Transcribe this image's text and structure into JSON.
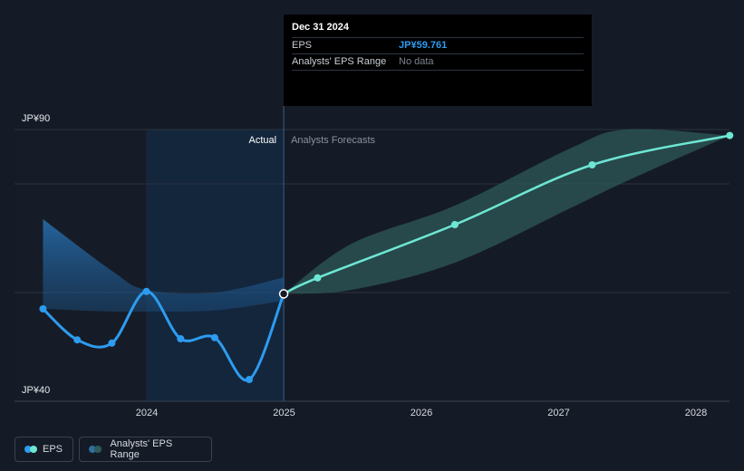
{
  "tooltip": {
    "date": "Dec 31 2024",
    "eps_label": "EPS",
    "eps_value": "JP¥59.761",
    "range_label": "Analysts' EPS Range",
    "range_value": "No data"
  },
  "labels": {
    "actual": "Actual",
    "forecast": "Analysts Forecasts"
  },
  "legend": {
    "eps": "EPS",
    "range": "Analysts' EPS Range"
  },
  "colors": {
    "background": "#151b26",
    "eps_line": "#2d9cf0",
    "forecast_line": "#6ee6d4",
    "range_band": "#2e5a58",
    "actual_band": "#1f5a8a"
  },
  "chart_data": {
    "type": "line",
    "x_ticks": [
      "2024",
      "2025",
      "2026",
      "2027",
      "2028"
    ],
    "y_ticks": [
      "JP¥40",
      "JP¥90"
    ],
    "ylim": [
      40,
      90
    ],
    "grid": true,
    "series": [
      {
        "name": "EPS",
        "points": [
          {
            "x": "2023-03-31",
            "y": 57.0
          },
          {
            "x": "2023-06-30",
            "y": 51.3
          },
          {
            "x": "2023-09-30",
            "y": 50.7
          },
          {
            "x": "2023-12-31",
            "y": 60.2
          },
          {
            "x": "2024-03-31",
            "y": 51.5
          },
          {
            "x": "2024-06-30",
            "y": 51.7
          },
          {
            "x": "2024-09-30",
            "y": 44.0
          },
          {
            "x": "2024-12-31",
            "y": 59.761
          }
        ]
      },
      {
        "name": "Forecast EPS",
        "points": [
          {
            "x": "2024-12-31",
            "y": 59.761
          },
          {
            "x": "2025-03-31",
            "y": 62.7
          },
          {
            "x": "2026-03-31",
            "y": 72.5
          },
          {
            "x": "2027-03-31",
            "y": 83.5
          },
          {
            "x": "2028-03-31",
            "y": 88.9
          }
        ]
      },
      {
        "name": "Analysts' EPS Range",
        "points": [
          {
            "x": "2024-12-31",
            "low": 59.761,
            "high": 59.761
          },
          {
            "x": "2025-06-30",
            "low": 60.5,
            "high": 69.0
          },
          {
            "x": "2026-03-31",
            "low": 65.5,
            "high": 76.0
          },
          {
            "x": "2027-01-31",
            "low": 75.5,
            "high": 86.5
          },
          {
            "x": "2027-06-30",
            "low": 80.5,
            "high": 90.0
          },
          {
            "x": "2028-03-31",
            "low": 88.9,
            "high": 88.9
          }
        ]
      },
      {
        "name": "Past EPS Range",
        "points": [
          {
            "x": "2023-03-31",
            "low": 57.0,
            "high": 73.5
          },
          {
            "x": "2023-09-30",
            "low": 56.5,
            "high": 64.0
          },
          {
            "x": "2023-12-31",
            "low": 56.5,
            "high": 60.5
          },
          {
            "x": "2024-06-30",
            "low": 56.7,
            "high": 60.0
          },
          {
            "x": "2024-12-31",
            "low": 58.5,
            "high": 62.8
          }
        ]
      }
    ]
  }
}
